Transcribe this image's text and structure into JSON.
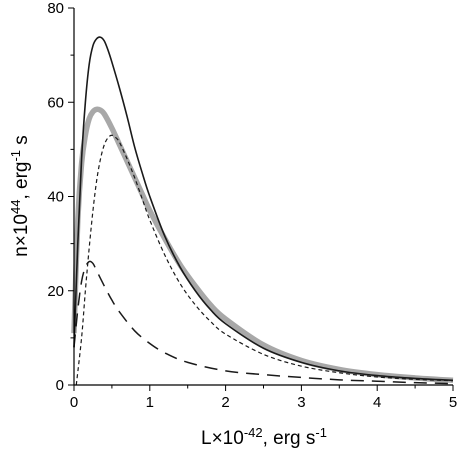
{
  "chart_data": {
    "type": "line",
    "xlabel": "L×10-42, erg s-1",
    "ylabel": "n×1044, erg-1 s",
    "xlabel_parts": {
      "base": "L×10",
      "exp": "-42",
      "mid": ", erg s",
      "exp2": "-1"
    },
    "ylabel_parts": {
      "base": "n×10",
      "exp": "44",
      "mid": ", erg",
      "exp2": "-1",
      "tail": " s"
    },
    "xlim": [
      0,
      5
    ],
    "ylim": [
      0,
      80
    ],
    "xticks": [
      0,
      1,
      2,
      3,
      4,
      5
    ],
    "yticks": [
      0,
      20,
      40,
      60,
      80
    ],
    "grid": false,
    "series": [
      {
        "style": "solid-thin",
        "color": "#1a1a1a",
        "x": [
          0,
          0.05,
          0.1,
          0.15,
          0.2,
          0.25,
          0.3,
          0.35,
          0.4,
          0.45,
          0.5,
          0.6,
          0.7,
          0.8,
          0.9,
          1.0,
          1.2,
          1.4,
          1.6,
          1.8,
          2.0,
          2.5,
          3.0,
          3.5,
          4.0,
          4.5,
          5.0
        ],
        "y": [
          8,
          30,
          48,
          60,
          68,
          72,
          73.5,
          73.8,
          73,
          71,
          68.5,
          63,
          57,
          50.5,
          45,
          40,
          31.5,
          25,
          20,
          16,
          13,
          7.8,
          4.8,
          3.0,
          2.0,
          1.4,
          1.0
        ]
      },
      {
        "style": "solid-thick",
        "color": "#a8a8a8",
        "x": [
          0,
          0.05,
          0.1,
          0.15,
          0.2,
          0.25,
          0.3,
          0.35,
          0.4,
          0.5,
          0.6,
          0.7,
          0.8,
          0.9,
          1.0,
          1.2,
          1.4,
          1.6,
          1.8,
          2.0,
          2.5,
          3.0,
          3.5,
          4.0,
          4.5,
          5.0
        ],
        "y": [
          11,
          35,
          47,
          53,
          56.5,
          58,
          58.5,
          58.3,
          57.5,
          54.5,
          51,
          47.5,
          44,
          40.5,
          37,
          31,
          25.5,
          21,
          17,
          14,
          8.5,
          5.2,
          3.3,
          2.2,
          1.5,
          1.0
        ]
      },
      {
        "style": "short-dash",
        "color": "#1a1a1a",
        "x": [
          0.03,
          0.1,
          0.15,
          0.2,
          0.25,
          0.3,
          0.35,
          0.4,
          0.45,
          0.5,
          0.55,
          0.6,
          0.7,
          0.8,
          0.9,
          1.0,
          1.2,
          1.4,
          1.6,
          1.8,
          2.0,
          2.5,
          3.0,
          3.5,
          4.0,
          4.5,
          5.0
        ],
        "y": [
          0,
          10,
          20,
          29,
          37,
          43.5,
          48,
          51,
          52.5,
          53,
          52.5,
          51.5,
          48,
          44,
          39.5,
          35,
          27.5,
          21.5,
          17,
          13.5,
          10.8,
          6.5,
          4.0,
          2.6,
          1.7,
          1.2,
          0.9
        ]
      },
      {
        "style": "long-dash",
        "color": "#1a1a1a",
        "x": [
          0,
          0.05,
          0.1,
          0.15,
          0.2,
          0.25,
          0.3,
          0.4,
          0.5,
          0.6,
          0.8,
          1.0,
          1.2,
          1.5,
          2.0,
          2.5,
          3.0,
          3.5,
          4.0,
          4.5,
          5.0
        ],
        "y": [
          8,
          16,
          22,
          25,
          26.2,
          25.8,
          24.2,
          21,
          18,
          15.5,
          11.5,
          8.8,
          6.8,
          4.8,
          3.0,
          2.2,
          1.6,
          1.1,
          0.8,
          0.5,
          0.3
        ]
      }
    ]
  }
}
